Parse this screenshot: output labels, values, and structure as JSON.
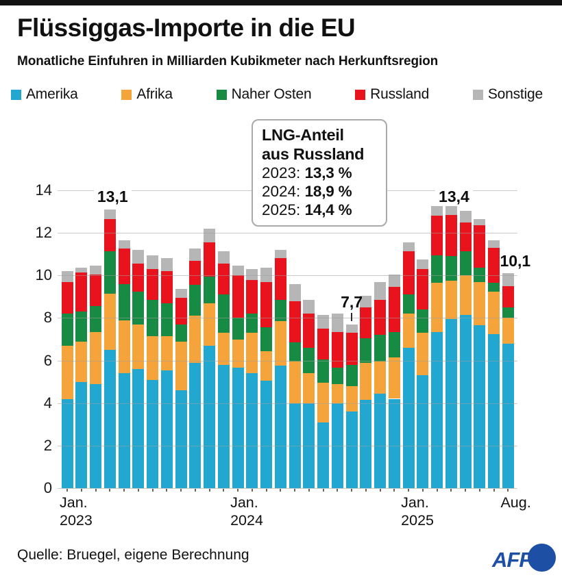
{
  "header": {
    "title": "Flüssiggas-Importe in die EU",
    "subtitle": "Monatliche Einfuhren in Milliarden Kubikmeter nach Herkunftsregion"
  },
  "legend": [
    {
      "label": "Amerika",
      "color": "#22a7d0"
    },
    {
      "label": "Afrika",
      "color": "#f5a43b"
    },
    {
      "label": "Naher Osten",
      "color": "#178a44"
    },
    {
      "label": "Russland",
      "color": "#e8131d"
    },
    {
      "label": "Sonstige",
      "color": "#b6b6b6"
    }
  ],
  "info_box": {
    "title_line1": "LNG-Anteil",
    "title_line2": "aus Russland",
    "rows": [
      {
        "year": "2023:",
        "value": "13,3 %"
      },
      {
        "year": "2024:",
        "value": "18,9 %"
      },
      {
        "year": "2025:",
        "value": "14,4 %"
      }
    ]
  },
  "chart_data": {
    "type": "bar",
    "stacked": true,
    "title": "Flüssiggas-Importe in die EU",
    "xlabel": "",
    "ylabel": "Milliarden Kubikmeter",
    "ylim": [
      0,
      14
    ],
    "yticks": [
      0,
      2,
      4,
      6,
      8,
      10,
      12,
      14
    ],
    "grid": true,
    "legend_position": "top",
    "categories": [
      "Jan. 2023",
      "Feb. 2023",
      "Mär. 2023",
      "Apr. 2023",
      "Mai 2023",
      "Jun. 2023",
      "Jul. 2023",
      "Aug. 2023",
      "Sep. 2023",
      "Okt. 2023",
      "Nov. 2023",
      "Dez. 2023",
      "Jan. 2024",
      "Feb. 2024",
      "Mär. 2024",
      "Apr. 2024",
      "Mai 2024",
      "Jun. 2024",
      "Jul. 2024",
      "Aug. 2024",
      "Sep. 2024",
      "Okt. 2024",
      "Nov. 2024",
      "Dez. 2024",
      "Jan. 2025",
      "Feb. 2025",
      "Mär. 2025",
      "Apr. 2025",
      "Mai 2025",
      "Jun. 2025",
      "Jul. 2025",
      "Aug. 2025"
    ],
    "series": [
      {
        "name": "Amerika",
        "color": "#22a7d0",
        "values": [
          4.2,
          5.0,
          4.9,
          6.5,
          5.4,
          5.6,
          5.1,
          5.55,
          4.6,
          5.9,
          6.7,
          5.8,
          5.65,
          5.4,
          5.05,
          5.75,
          4.0,
          4.0,
          3.1,
          4.0,
          3.6,
          4.15,
          4.45,
          4.2,
          6.6,
          5.3,
          7.35,
          7.95,
          8.15,
          7.65,
          7.25,
          6.8
        ]
      },
      {
        "name": "Afrika",
        "color": "#f5a43b",
        "values": [
          2.5,
          1.9,
          2.45,
          2.65,
          2.5,
          2.1,
          2.05,
          1.6,
          2.3,
          2.2,
          2.0,
          1.5,
          1.35,
          1.9,
          1.4,
          2.1,
          1.95,
          1.4,
          1.85,
          0.9,
          1.2,
          1.75,
          1.5,
          1.95,
          1.6,
          2.0,
          2.3,
          1.8,
          1.85,
          2.05,
          2.0,
          1.2
        ]
      },
      {
        "name": "Naher Osten",
        "color": "#178a44",
        "values": [
          1.5,
          1.4,
          1.2,
          2.0,
          1.7,
          1.55,
          1.7,
          1.55,
          0.8,
          1.45,
          1.25,
          1.8,
          1.0,
          0.9,
          1.1,
          1.0,
          0.9,
          1.2,
          1.1,
          0.75,
          1.0,
          1.15,
          1.25,
          1.2,
          0.9,
          1.1,
          1.3,
          1.15,
          1.15,
          0.65,
          0.4,
          0.5
        ]
      },
      {
        "name": "Russland",
        "color": "#e8131d",
        "values": [
          1.5,
          1.85,
          1.5,
          1.5,
          1.65,
          1.3,
          1.45,
          1.5,
          1.25,
          1.15,
          1.6,
          1.45,
          2.0,
          1.6,
          2.15,
          1.95,
          1.95,
          1.6,
          1.45,
          1.7,
          1.5,
          1.45,
          1.65,
          2.1,
          2.05,
          1.9,
          1.85,
          1.95,
          1.35,
          2.0,
          1.65,
          1.0
        ]
      },
      {
        "name": "Sonstige",
        "color": "#b6b6b6",
        "values": [
          0.5,
          0.2,
          0.4,
          0.45,
          0.4,
          0.65,
          0.65,
          0.6,
          0.4,
          0.55,
          0.65,
          0.6,
          0.45,
          0.5,
          0.65,
          0.4,
          0.8,
          0.65,
          0.65,
          0.85,
          0.4,
          0.55,
          0.85,
          0.6,
          0.4,
          0.45,
          0.45,
          0.55,
          0.55,
          0.3,
          0.35,
          0.6
        ]
      }
    ],
    "annotations": [
      {
        "bar_index": 3,
        "text": "13,1",
        "placement": "top-line"
      },
      {
        "bar_index": 20,
        "text": "7,7",
        "placement": "above-tick"
      },
      {
        "bar_index": 27,
        "text": "13,4",
        "placement": "top-line"
      },
      {
        "bar_index": 31,
        "text": "10,1",
        "placement": "right"
      }
    ],
    "x_tick_labels": [
      {
        "index": 0,
        "lines": [
          "Jan.",
          "2023"
        ]
      },
      {
        "index": 12,
        "lines": [
          "Jan.",
          "2024"
        ]
      },
      {
        "index": 24,
        "lines": [
          "Jan.",
          "2025"
        ]
      },
      {
        "index": 31,
        "lines": [
          "Aug."
        ]
      }
    ]
  },
  "footer": {
    "source": "Quelle: Bruegel, eigene Berechnung",
    "logo_text": "AFP"
  }
}
